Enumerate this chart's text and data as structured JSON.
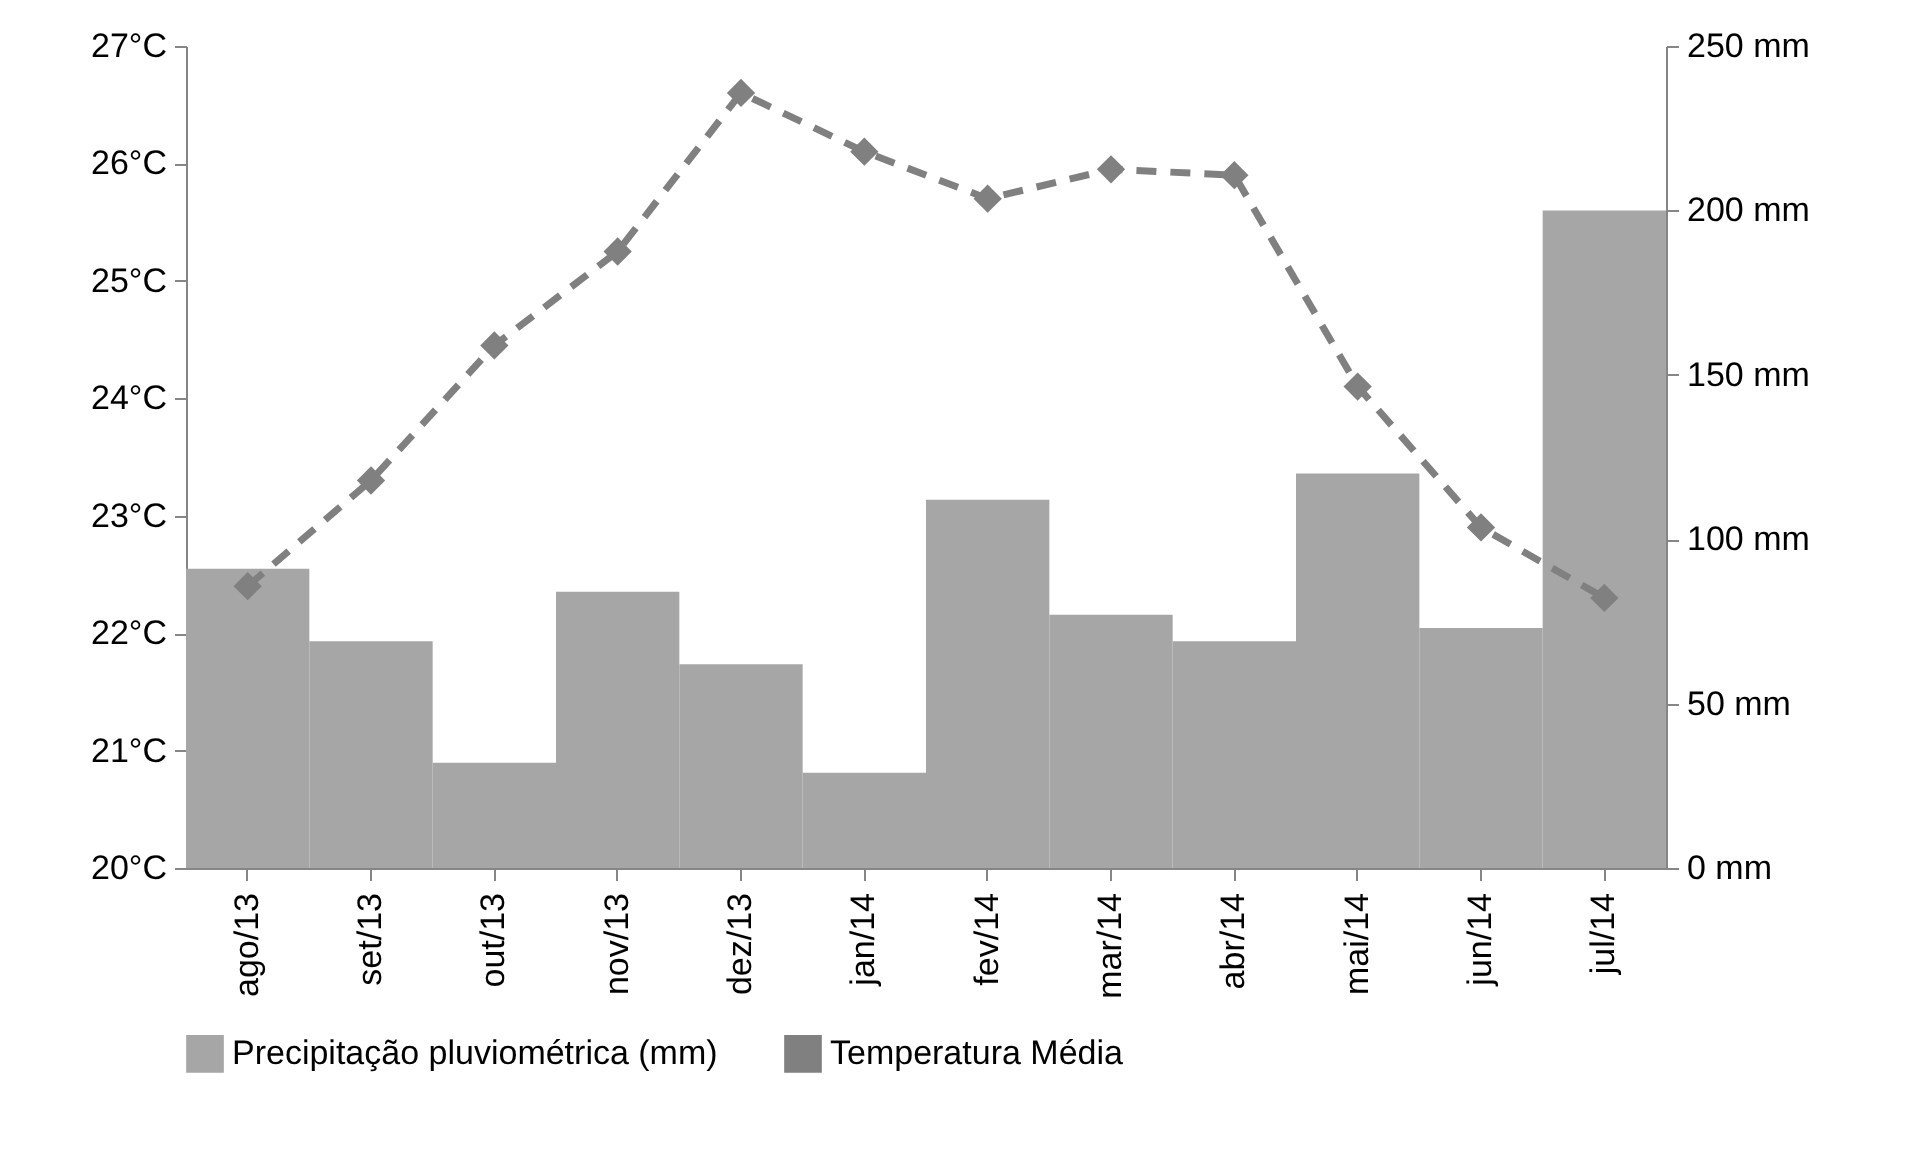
{
  "chart_data": {
    "type": "bar",
    "categories": [
      "ago/13",
      "set/13",
      "out/13",
      "nov/13",
      "dez/13",
      "jan/14",
      "fev/14",
      "mar/14",
      "abr/14",
      "mai/14",
      "jun/14",
      "jul/14"
    ],
    "series": [
      {
        "name": "Precipitação pluviométrica (mm)",
        "axis": "y2",
        "color": "#a6a6a6",
        "values": [
          91,
          69,
          32,
          84,
          62,
          29,
          112,
          77,
          69,
          120,
          73,
          200
        ]
      },
      {
        "name": "Temperatura Média",
        "type": "line",
        "color": "#808080",
        "marker": "diamond",
        "line_style": "dashed",
        "values": [
          22.4,
          23.3,
          24.45,
          25.25,
          26.6,
          26.1,
          25.7,
          25.95,
          25.9,
          24.1,
          22.9,
          22.3
        ]
      }
    ],
    "ylim": [
      20,
      27
    ],
    "yticks": [
      {
        "value": 20,
        "label": "20°C"
      },
      {
        "value": 21,
        "label": "21°C"
      },
      {
        "value": 22,
        "label": "22°C"
      },
      {
        "value": 23,
        "label": "23°C"
      },
      {
        "value": 24,
        "label": "24°C"
      },
      {
        "value": 25,
        "label": "25°C"
      },
      {
        "value": 26,
        "label": "26°C"
      },
      {
        "value": 27,
        "label": "27°C"
      }
    ],
    "y2lim": [
      0,
      250
    ],
    "y2ticks": [
      {
        "value": 0,
        "label": "0 mm"
      },
      {
        "value": 50,
        "label": "50 mm"
      },
      {
        "value": 100,
        "label": "100 mm"
      },
      {
        "value": 150,
        "label": "150 mm"
      },
      {
        "value": 200,
        "label": "200 mm"
      },
      {
        "value": 250,
        "label": "250 mm"
      }
    ],
    "legend": "bottom"
  }
}
